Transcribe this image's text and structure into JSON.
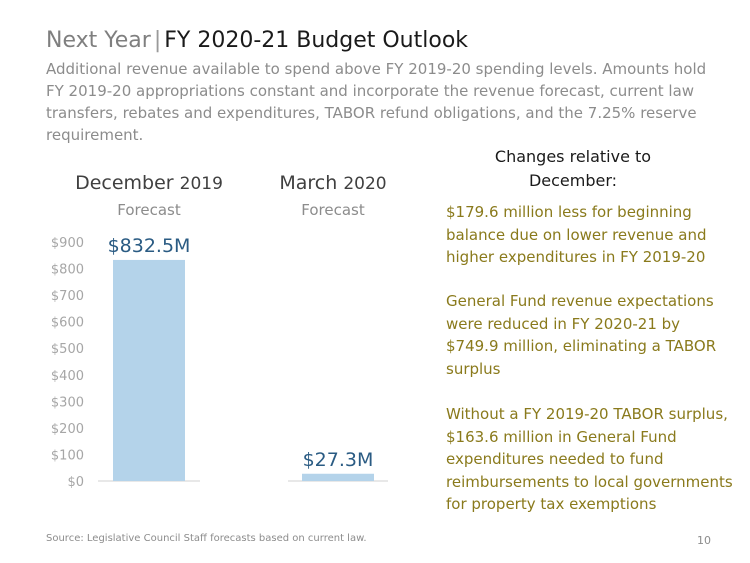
{
  "header": {
    "title_prefix": "Next Year",
    "title_main": "FY 2020-21 Budget Outlook",
    "subtitle": "Additional revenue available to spend above FY 2019-20 spending levels. Amounts hold FY 2019-20 appropriations constant and incorporate the revenue forecast, current law transfers, rebates and expenditures, TABOR refund obligations, and the 7.25% reserve requirement."
  },
  "columns": [
    {
      "head_month": "December",
      "head_year": "2019",
      "sub": "Forecast"
    },
    {
      "head_month": "March",
      "head_year": "2020",
      "sub": "Forecast"
    }
  ],
  "chart_data": {
    "type": "bar",
    "title": "",
    "xlabel": "",
    "ylabel": "",
    "categories": [
      "December 2019 Forecast",
      "March 2020 Forecast"
    ],
    "values": [
      832.5,
      27.3
    ],
    "data_labels": [
      "$832.5M",
      "$27.3M"
    ],
    "ylim": [
      0,
      900
    ],
    "yticks": [
      0,
      100,
      200,
      300,
      400,
      500,
      600,
      700,
      800,
      900
    ],
    "ytick_labels": [
      "$0",
      "$100",
      "$200",
      "$300",
      "$400",
      "$500",
      "$600",
      "$700",
      "$800",
      "$900"
    ],
    "grid": false,
    "colors": {
      "bar": "#b4d3ea",
      "label": "#2a5b83",
      "tick": "#a6a6a6",
      "axis": "#d0d0d0"
    }
  },
  "changes": {
    "title_line1": "Changes relative to",
    "title_line2": "December:",
    "notes": [
      "$179.6 million less for beginning balance due on lower revenue and higher expenditures in FY 2019-20",
      "General Fund revenue expectations were reduced in FY 2020-21 by $749.9 million, eliminating a TABOR surplus",
      "Without a FY 2019-20 TABOR surplus, $163.6 million in General Fund expenditures needed to fund reimbursements to local governments for property tax exemptions"
    ]
  },
  "footer": {
    "source": "Source: Legislative Council Staff forecasts based on current law.",
    "page": "10"
  }
}
